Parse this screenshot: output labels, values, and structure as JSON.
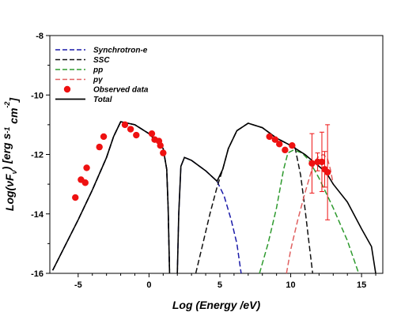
{
  "chart_data": {
    "type": "line",
    "xlabel": "Log (Energy /eV)",
    "ylabel_parts": [
      "Log(",
      "νF",
      "ν",
      ") [erg s",
      "-1",
      " cm",
      "-2",
      "]"
    ],
    "xlim": [
      -7,
      16.5
    ],
    "ylim": [
      -16,
      -8
    ],
    "xticks": [
      -5,
      0,
      5,
      10,
      15
    ],
    "xtick_labels": [
      "-5",
      "0",
      "5",
      "10",
      "15"
    ],
    "yticks": [
      -16,
      -14,
      -12,
      -10,
      -8
    ],
    "ytick_labels": [
      "-16",
      "-14",
      "-12",
      "-10",
      "-8"
    ],
    "grid": false,
    "legend_position": "top-left",
    "series": [
      {
        "name": "Synchrotron-e",
        "style": "dashed",
        "color": "#1a1aa8",
        "points": [
          [
            -6.8,
            -15.9
          ],
          [
            -5,
            -14.2
          ],
          [
            -4,
            -13.2
          ],
          [
            -3,
            -12.1
          ],
          [
            -2.5,
            -11.4
          ],
          [
            -2,
            -10.9
          ],
          [
            -1,
            -11.0
          ],
          [
            0,
            -11.3
          ],
          [
            0.5,
            -11.55
          ],
          [
            1,
            -11.8
          ],
          [
            1.25,
            -12.5
          ],
          [
            1.35,
            -13.8
          ],
          [
            1.45,
            -16
          ],
          [
            null,
            null
          ],
          [
            2.0,
            -16
          ],
          [
            2.1,
            -14
          ],
          [
            2.25,
            -12.4
          ],
          [
            2.5,
            -12.1
          ],
          [
            3.0,
            -12.2
          ],
          [
            4.0,
            -12.55
          ],
          [
            4.8,
            -12.9
          ],
          [
            5.3,
            -13.4
          ],
          [
            5.8,
            -14.2
          ],
          [
            6.2,
            -15.0
          ],
          [
            6.5,
            -16
          ]
        ]
      },
      {
        "name": "SSC",
        "style": "dashed",
        "color": "#111111",
        "points": [
          [
            -6.8,
            -15.9
          ],
          [
            -5,
            -14.2
          ],
          [
            -4,
            -13.2
          ],
          [
            -3,
            -12.1
          ],
          [
            -2.5,
            -11.4
          ],
          [
            -2,
            -10.9
          ],
          [
            -1,
            -11.0
          ],
          [
            0,
            -11.3
          ],
          [
            0.5,
            -11.55
          ],
          [
            1,
            -11.8
          ],
          [
            1.25,
            -12.5
          ],
          [
            1.35,
            -13.8
          ],
          [
            1.45,
            -16
          ],
          [
            null,
            null
          ],
          [
            3.3,
            -16
          ],
          [
            3.8,
            -15.0
          ],
          [
            4.3,
            -14.0
          ],
          [
            4.8,
            -13.1
          ],
          [
            5.2,
            -12.5
          ],
          [
            5.6,
            -11.8
          ],
          [
            6.2,
            -11.2
          ],
          [
            7,
            -10.95
          ],
          [
            8,
            -11.1
          ],
          [
            9,
            -11.45
          ],
          [
            10,
            -11.7
          ],
          [
            10.3,
            -11.75
          ],
          [
            10.7,
            -12.7
          ],
          [
            11,
            -13.8
          ],
          [
            11.3,
            -15.0
          ],
          [
            11.55,
            -16
          ]
        ]
      },
      {
        "name": "pp",
        "style": "dashed",
        "color": "#2e9a2e",
        "points": [
          [
            7.8,
            -16
          ],
          [
            8.4,
            -15.0
          ],
          [
            9.0,
            -13.8
          ],
          [
            9.5,
            -12.5
          ],
          [
            9.8,
            -11.95
          ],
          [
            10.2,
            -11.85
          ],
          [
            10.8,
            -11.95
          ],
          [
            11.3,
            -12.2
          ],
          [
            12,
            -12.8
          ],
          [
            13,
            -13.8
          ],
          [
            14,
            -14.9
          ],
          [
            14.8,
            -16
          ]
        ]
      },
      {
        "name": "pγ",
        "style": "dashed",
        "color": "#e06060",
        "points": [
          [
            9.7,
            -16
          ],
          [
            10.0,
            -15.2
          ],
          [
            10.5,
            -14.2
          ],
          [
            11.0,
            -13.3
          ],
          [
            11.5,
            -12.5
          ],
          [
            11.9,
            -12.1
          ],
          [
            12.3,
            -12.0
          ],
          [
            12.6,
            -12.15
          ],
          [
            12.8,
            -12.5
          ],
          [
            13.0,
            -13.0
          ]
        ]
      },
      {
        "name": "Total",
        "style": "solid",
        "color": "#000000",
        "points": [
          [
            -6.8,
            -15.9
          ],
          [
            -5,
            -14.2
          ],
          [
            -4,
            -13.2
          ],
          [
            -3,
            -12.1
          ],
          [
            -2.5,
            -11.4
          ],
          [
            -2,
            -10.9
          ],
          [
            -1,
            -11.0
          ],
          [
            0,
            -11.3
          ],
          [
            0.5,
            -11.55
          ],
          [
            1,
            -11.8
          ],
          [
            1.25,
            -12.5
          ],
          [
            1.35,
            -13.8
          ],
          [
            1.45,
            -16
          ],
          [
            null,
            null
          ],
          [
            2.0,
            -16
          ],
          [
            2.1,
            -14
          ],
          [
            2.25,
            -12.4
          ],
          [
            2.5,
            -12.1
          ],
          [
            3.0,
            -12.2
          ],
          [
            4.0,
            -12.55
          ],
          [
            4.8,
            -12.9
          ],
          [
            5.2,
            -12.5
          ],
          [
            5.6,
            -11.8
          ],
          [
            6.2,
            -11.2
          ],
          [
            7,
            -10.95
          ],
          [
            8,
            -11.1
          ],
          [
            9,
            -11.45
          ],
          [
            10,
            -11.7
          ],
          [
            11,
            -12.0
          ],
          [
            11.5,
            -12.2
          ],
          [
            12,
            -12.4
          ],
          [
            12.5,
            -12.6
          ],
          [
            13,
            -13.0
          ],
          [
            14,
            -13.6
          ],
          [
            15,
            -14.5
          ],
          [
            15.7,
            -15.1
          ],
          [
            16.0,
            -16
          ]
        ]
      }
    ],
    "observed_data": {
      "name": "Observed data",
      "color": "#ee1111",
      "points": [
        {
          "x": -5.2,
          "y": -13.45
        },
        {
          "x": -4.8,
          "y": -12.85
        },
        {
          "x": -4.5,
          "y": -12.95
        },
        {
          "x": -4.4,
          "y": -12.45
        },
        {
          "x": -3.5,
          "y": -11.75
        },
        {
          "x": -3.2,
          "y": -11.4
        },
        {
          "x": -1.7,
          "y": -11.0
        },
        {
          "x": -1.3,
          "y": -11.15
        },
        {
          "x": -0.9,
          "y": -11.35
        },
        {
          "x": 0.2,
          "y": -11.3
        },
        {
          "x": 0.4,
          "y": -11.5
        },
        {
          "x": 0.7,
          "y": -11.55
        },
        {
          "x": 0.8,
          "y": -11.7
        },
        {
          "x": 1.0,
          "y": -11.95
        },
        {
          "x": 8.5,
          "y": -11.4
        },
        {
          "x": 8.9,
          "y": -11.5
        },
        {
          "x": 9.2,
          "y": -11.65
        },
        {
          "x": 9.6,
          "y": -11.85
        },
        {
          "x": 10.1,
          "y": -11.7
        },
        {
          "x": 11.5,
          "y": -12.3,
          "err": 1.0
        },
        {
          "x": 11.9,
          "y": -12.25,
          "err": 0.3
        },
        {
          "x": 12.2,
          "y": -12.25,
          "err": 1.0
        },
        {
          "x": 12.4,
          "y": -12.5,
          "err": 0.6
        },
        {
          "x": 12.6,
          "y": -12.6,
          "err": 1.6
        }
      ]
    },
    "legend": [
      {
        "label": "Synchrotron-e",
        "kind": "line",
        "style": "dashed",
        "color": "#1a1aa8"
      },
      {
        "label": "SSC",
        "kind": "line",
        "style": "dashed",
        "color": "#111111"
      },
      {
        "label": "pp",
        "kind": "line",
        "style": "dashed",
        "color": "#2e9a2e"
      },
      {
        "label": "pγ",
        "kind": "line",
        "style": "dashed",
        "color": "#e06060"
      },
      {
        "label": "Observed data",
        "kind": "marker",
        "color": "#ee1111"
      },
      {
        "label": "Total",
        "kind": "line",
        "style": "solid",
        "color": "#000000"
      }
    ]
  }
}
